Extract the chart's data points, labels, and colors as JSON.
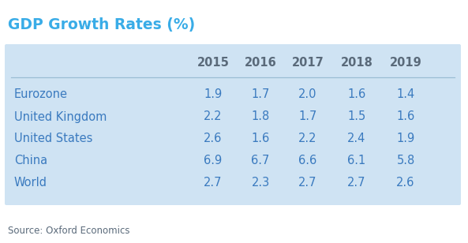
{
  "title": "GDP Growth Rates (%)",
  "title_color": "#39ace7",
  "title_fontsize": 13.5,
  "title_fontweight": "bold",
  "columns": [
    "2015",
    "2016",
    "2017",
    "2018",
    "2019"
  ],
  "rows": [
    [
      "Eurozone",
      "1.9",
      "1.7",
      "2.0",
      "1.6",
      "1.4"
    ],
    [
      "United Kingdom",
      "2.2",
      "1.8",
      "1.7",
      "1.5",
      "1.6"
    ],
    [
      "United States",
      "2.6",
      "1.6",
      "2.2",
      "2.4",
      "1.9"
    ],
    [
      "China",
      "6.9",
      "6.7",
      "6.6",
      "6.1",
      "5.8"
    ],
    [
      "World",
      "2.7",
      "2.3",
      "2.7",
      "2.7",
      "2.6"
    ]
  ],
  "source_text": "Source: Oxford Economics",
  "source_color": "#5a6a7a",
  "source_fontsize": 8.5,
  "table_bg_color": "#cfe3f3",
  "header_line_color": "#9bbdd4",
  "row_label_color": "#3a7abf",
  "value_color": "#3a7abf",
  "header_color": "#5a6a7a",
  "fig_bg_color": "#ffffff",
  "table_fontsize": 10.5,
  "header_fontsize": 10.5
}
